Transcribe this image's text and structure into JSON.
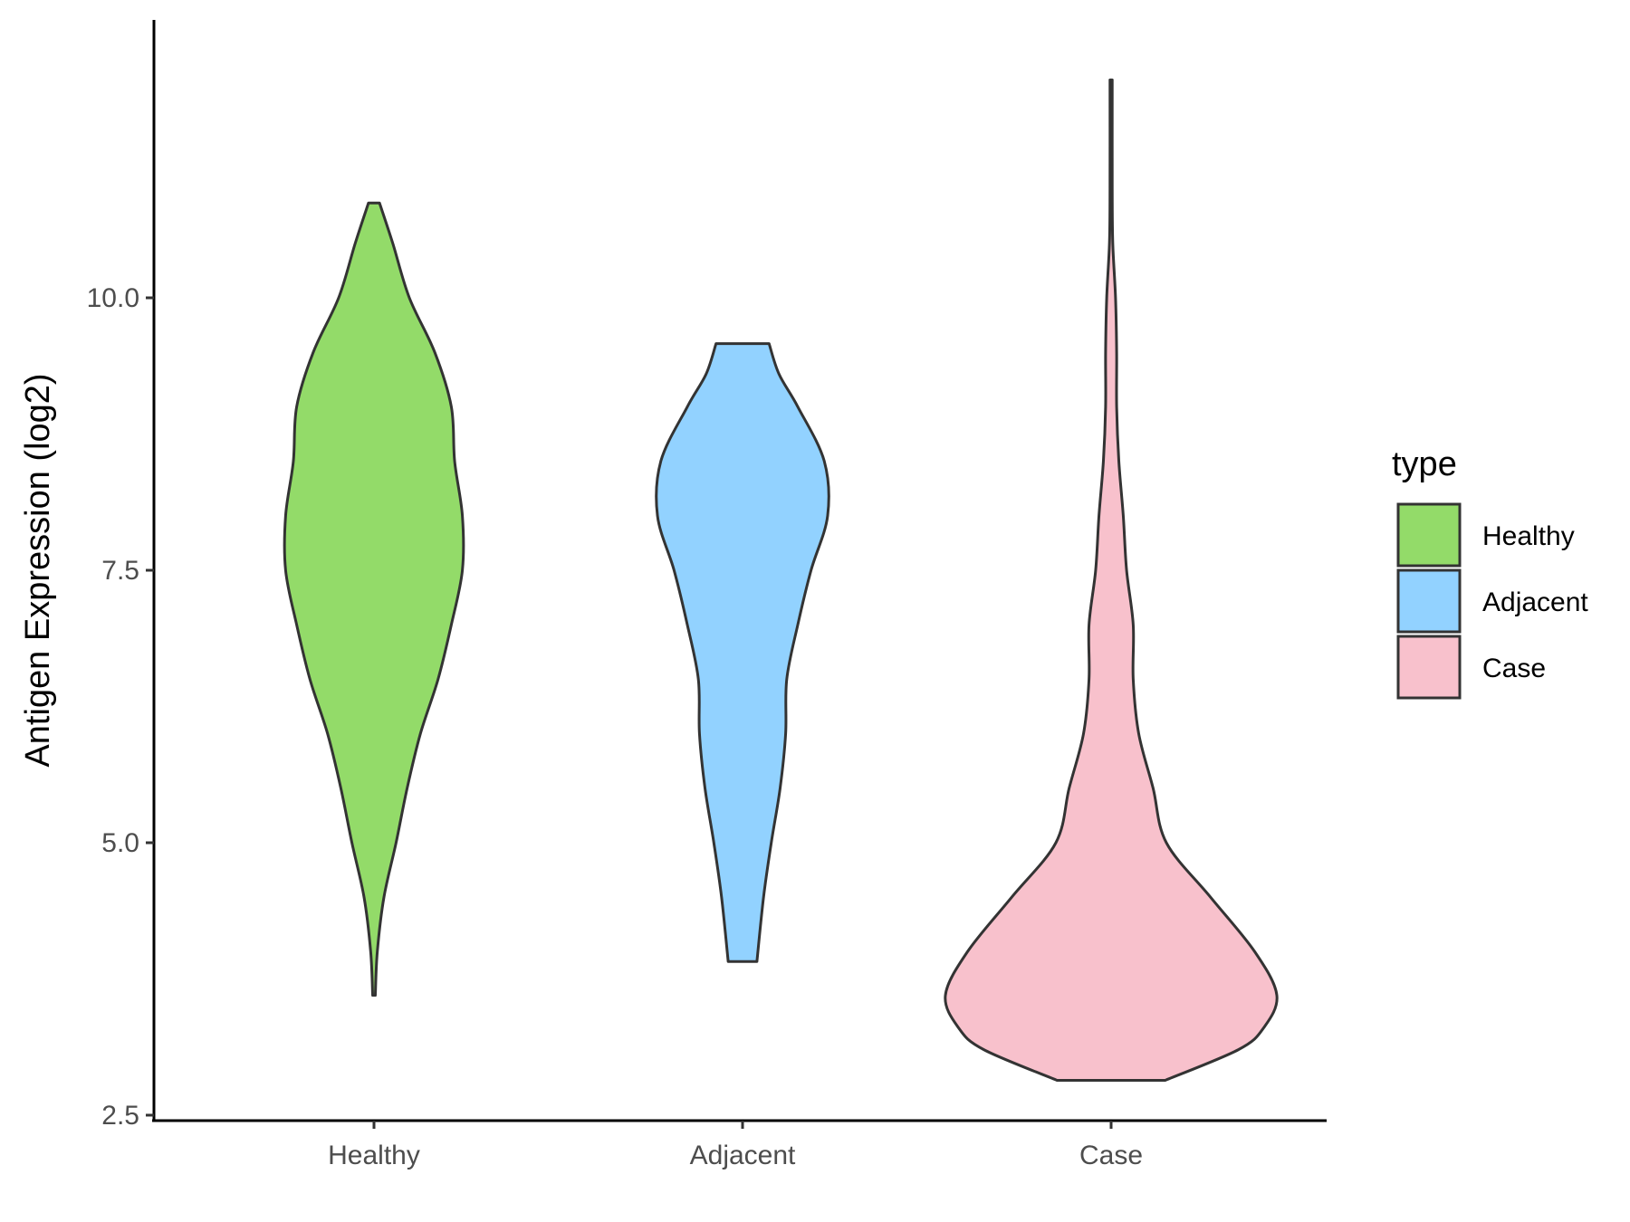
{
  "chart_data": {
    "type": "violin",
    "title": "",
    "xlabel": "",
    "ylabel": "Antigen Expression (log2)",
    "ylim": [
      2.45,
      12.55
    ],
    "yticks": [
      {
        "value": 2.5,
        "label": "2.5"
      },
      {
        "value": 5.0,
        "label": "5.0"
      },
      {
        "value": 7.5,
        "label": "7.5"
      },
      {
        "value": 10.0,
        "label": "10.0"
      }
    ],
    "categories": [
      "Healthy",
      "Adjacent",
      "Case"
    ],
    "legend": {
      "title": "type",
      "position": "right",
      "entries": [
        "Healthy",
        "Adjacent",
        "Case"
      ]
    },
    "series": [
      {
        "name": "Healthy",
        "color": "#93db69",
        "min": 3.6,
        "max": 10.87,
        "profile": [
          [
            3.6,
            0.012
          ],
          [
            4.0,
            0.03
          ],
          [
            4.5,
            0.09
          ],
          [
            5.0,
            0.2
          ],
          [
            5.5,
            0.3
          ],
          [
            6.0,
            0.42
          ],
          [
            6.5,
            0.58
          ],
          [
            7.0,
            0.7
          ],
          [
            7.5,
            0.8
          ],
          [
            8.0,
            0.8
          ],
          [
            8.5,
            0.73
          ],
          [
            9.0,
            0.7
          ],
          [
            9.5,
            0.55
          ],
          [
            10.0,
            0.32
          ],
          [
            10.5,
            0.17
          ],
          [
            10.87,
            0.05
          ]
        ]
      },
      {
        "name": "Adjacent",
        "color": "#92d2ff",
        "min": 3.91,
        "max": 9.58,
        "profile": [
          [
            3.91,
            0.13
          ],
          [
            4.5,
            0.19
          ],
          [
            5.0,
            0.26
          ],
          [
            5.5,
            0.34
          ],
          [
            6.0,
            0.39
          ],
          [
            6.5,
            0.4
          ],
          [
            7.0,
            0.5
          ],
          [
            7.5,
            0.62
          ],
          [
            8.0,
            0.77
          ],
          [
            8.5,
            0.74
          ],
          [
            9.0,
            0.5
          ],
          [
            9.3,
            0.33
          ],
          [
            9.58,
            0.24
          ]
        ]
      },
      {
        "name": "Case",
        "color": "#f8c1cc",
        "min": 2.82,
        "max": 12.0,
        "profile": [
          [
            2.82,
            0.49
          ],
          [
            3.1,
            1.15
          ],
          [
            3.3,
            1.38
          ],
          [
            3.6,
            1.5
          ],
          [
            4.0,
            1.3
          ],
          [
            4.5,
            0.9
          ],
          [
            5.0,
            0.5
          ],
          [
            5.5,
            0.38
          ],
          [
            6.0,
            0.25
          ],
          [
            6.5,
            0.2
          ],
          [
            7.0,
            0.2
          ],
          [
            7.5,
            0.14
          ],
          [
            8.0,
            0.11
          ],
          [
            8.5,
            0.07
          ],
          [
            9.0,
            0.05
          ],
          [
            9.5,
            0.05
          ],
          [
            10.0,
            0.04
          ],
          [
            10.5,
            0.015
          ],
          [
            11.0,
            0.01
          ],
          [
            12.0,
            0.01
          ]
        ]
      }
    ]
  }
}
